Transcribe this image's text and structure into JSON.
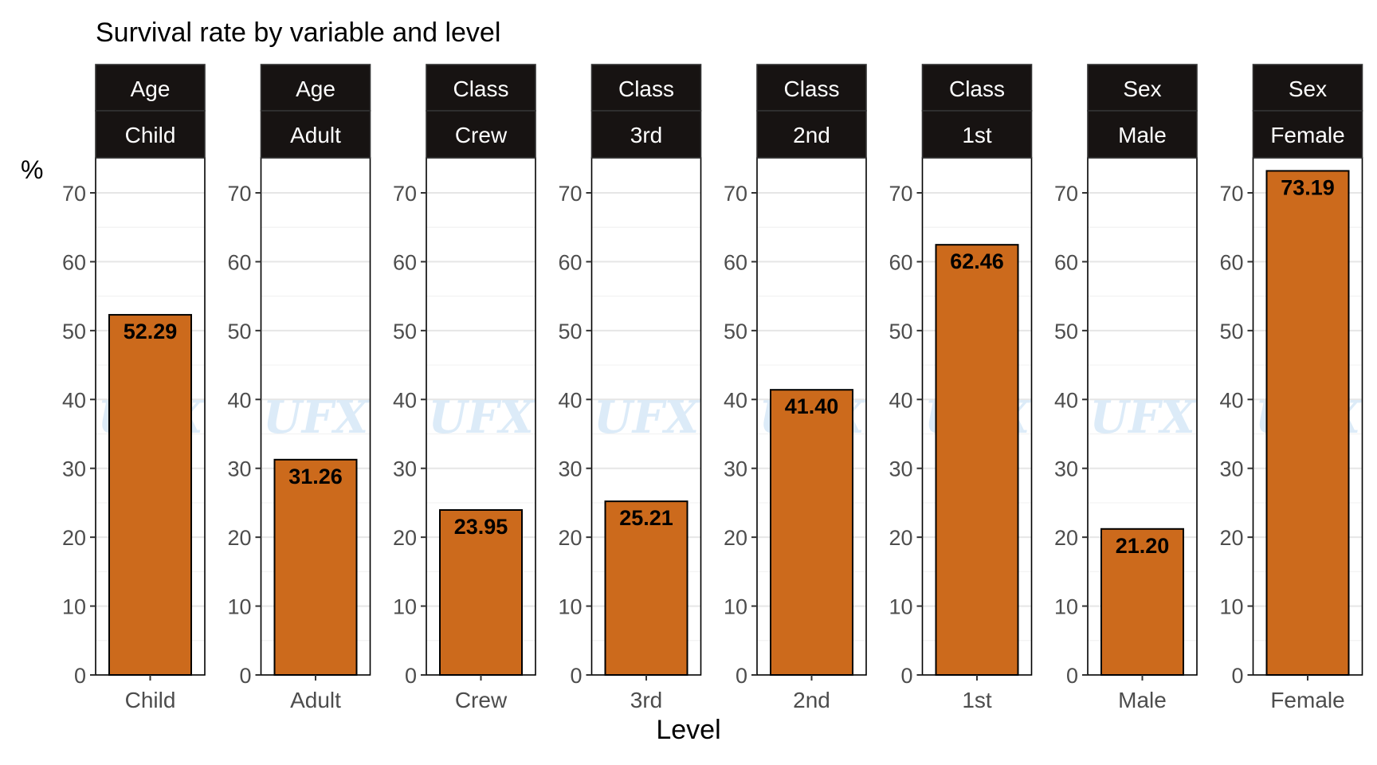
{
  "title": "Survival rate by variable and level",
  "chart_data": {
    "type": "bar",
    "title": "Survival rate by variable and level",
    "xlabel": "Level",
    "ylabel": "%",
    "ylim": [
      0,
      75
    ],
    "yticks": [
      "0",
      "10",
      "20",
      "30",
      "40",
      "50",
      "60",
      "70"
    ],
    "facet_row1": [
      "Age",
      "Age",
      "Class",
      "Class",
      "Class",
      "Class",
      "Sex",
      "Sex"
    ],
    "categories": [
      "Child",
      "Adult",
      "Crew",
      "3rd",
      "2nd",
      "1st",
      "Male",
      "Female"
    ],
    "values": [
      52.29,
      31.26,
      23.95,
      25.21,
      41.4,
      62.46,
      21.2,
      73.19
    ],
    "labels": [
      "52.29",
      "31.26",
      "23.95",
      "25.21",
      "41.40",
      "62.46",
      "21.20",
      "73.19"
    ],
    "watermark": "UFX",
    "bar_color": "#cc6a1c",
    "strip_color": "#171312",
    "grid": true
  }
}
